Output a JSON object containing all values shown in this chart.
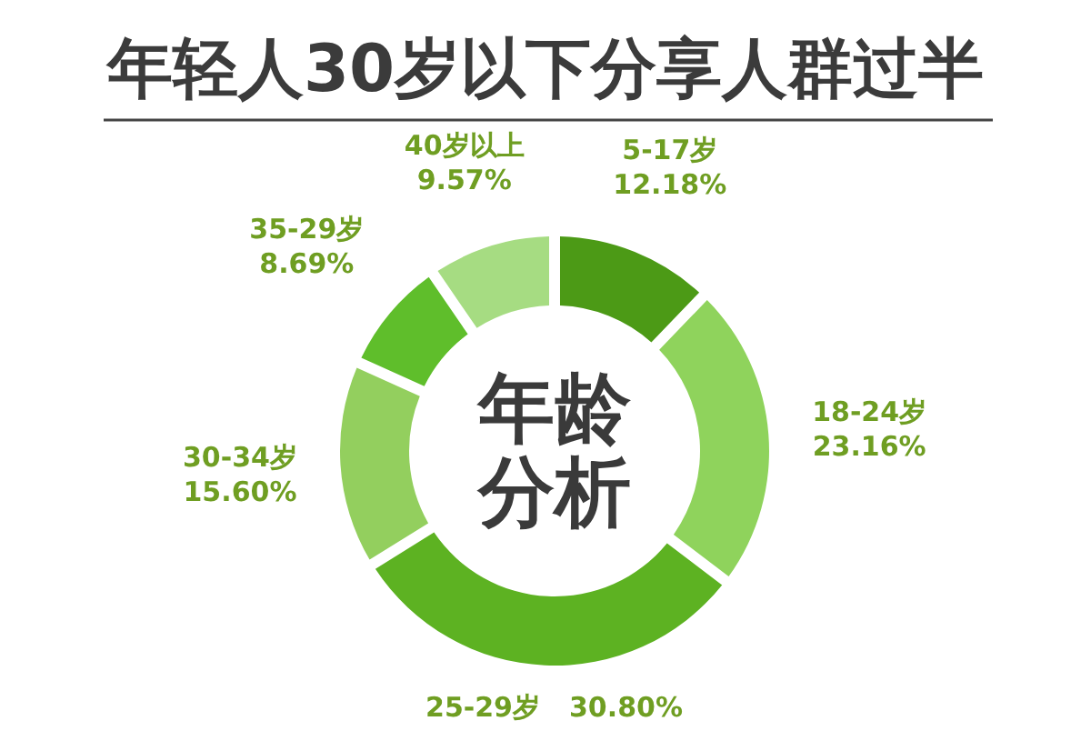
{
  "chart_data": {
    "type": "donut",
    "title": "年轻人30岁以下分享人群过半",
    "categories": [
      "5-17岁",
      "18-24岁",
      "25-29岁",
      "30-34岁",
      "35-29岁",
      "40岁以上"
    ],
    "values": [
      12.18,
      23.16,
      30.8,
      15.6,
      8.69,
      9.57
    ],
    "value_labels": [
      "12.18%",
      "23.16%",
      "30.80%",
      "15.60%",
      "8.69%",
      "9.57%"
    ],
    "colors": [
      "#4c9a16",
      "#8fd35c",
      "#5db222",
      "#93cf5e",
      "#5fbe2b",
      "#a6dc82"
    ],
    "annotations": [
      "年龄分析"
    ]
  }
}
